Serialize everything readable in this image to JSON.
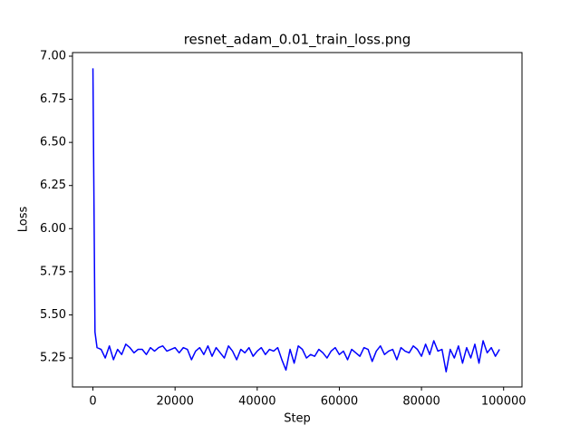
{
  "chart_data": {
    "type": "line",
    "title": "resnet_adam_0.01_train_loss.png",
    "xlabel": "Step",
    "ylabel": "Loss",
    "color": "#0000ff",
    "x": [
      0,
      500,
      1000,
      2000,
      3000,
      4000,
      5000,
      6000,
      7000,
      8000,
      9000,
      10000,
      11000,
      12000,
      13000,
      14000,
      15000,
      16000,
      17000,
      18000,
      19000,
      20000,
      21000,
      22000,
      23000,
      24000,
      25000,
      26000,
      27000,
      28000,
      29000,
      30000,
      31000,
      32000,
      33000,
      34000,
      35000,
      36000,
      37000,
      38000,
      39000,
      40000,
      41000,
      42000,
      43000,
      44000,
      45000,
      46000,
      47000,
      48000,
      49000,
      50000,
      51000,
      52000,
      53000,
      54000,
      55000,
      56000,
      57000,
      58000,
      59000,
      60000,
      61000,
      62000,
      63000,
      64000,
      65000,
      66000,
      67000,
      68000,
      69000,
      70000,
      71000,
      72000,
      73000,
      74000,
      75000,
      76000,
      77000,
      78000,
      79000,
      80000,
      81000,
      82000,
      83000,
      84000,
      85000,
      86000,
      87000,
      88000,
      89000,
      90000,
      91000,
      92000,
      93000,
      94000,
      95000,
      96000,
      97000,
      98000,
      99000
    ],
    "values": [
      6.93,
      5.4,
      5.31,
      5.3,
      5.25,
      5.32,
      5.24,
      5.3,
      5.27,
      5.33,
      5.31,
      5.28,
      5.3,
      5.3,
      5.27,
      5.31,
      5.29,
      5.31,
      5.32,
      5.29,
      5.3,
      5.31,
      5.28,
      5.31,
      5.3,
      5.24,
      5.29,
      5.31,
      5.27,
      5.32,
      5.26,
      5.31,
      5.28,
      5.25,
      5.32,
      5.29,
      5.24,
      5.3,
      5.28,
      5.31,
      5.26,
      5.29,
      5.31,
      5.27,
      5.3,
      5.29,
      5.31,
      5.24,
      5.18,
      5.3,
      5.22,
      5.32,
      5.3,
      5.25,
      5.27,
      5.26,
      5.3,
      5.28,
      5.25,
      5.29,
      5.31,
      5.27,
      5.29,
      5.24,
      5.3,
      5.28,
      5.26,
      5.31,
      5.3,
      5.23,
      5.29,
      5.32,
      5.27,
      5.29,
      5.3,
      5.24,
      5.31,
      5.29,
      5.28,
      5.32,
      5.3,
      5.26,
      5.33,
      5.27,
      5.35,
      5.29,
      5.3,
      5.17,
      5.3,
      5.25,
      5.32,
      5.22,
      5.31,
      5.25,
      5.33,
      5.22,
      5.35,
      5.28,
      5.31,
      5.26,
      5.3
    ],
    "xlim": [
      -4975,
      104475
    ],
    "ylim": [
      5.082,
      7.021
    ],
    "xticks": [
      0,
      20000,
      40000,
      60000,
      80000,
      100000
    ],
    "yticks": [
      {
        "value": 5.25,
        "label": "5.25"
      },
      {
        "value": 5.5,
        "label": "5.50"
      },
      {
        "value": 5.75,
        "label": "5.75"
      },
      {
        "value": 6,
        "label": "6.00"
      },
      {
        "value": 6.25,
        "label": "6.25"
      },
      {
        "value": 6.5,
        "label": "6.50"
      },
      {
        "value": 6.75,
        "label": "6.75"
      },
      {
        "value": 7,
        "label": "7.00"
      }
    ]
  }
}
